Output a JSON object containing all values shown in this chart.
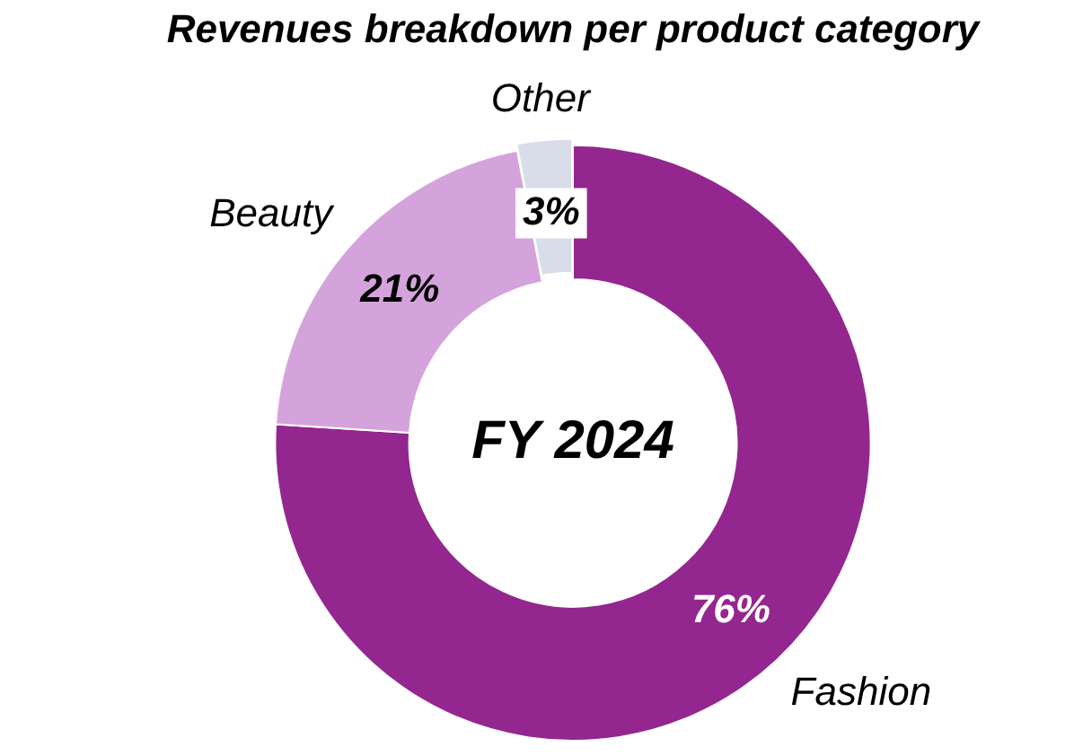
{
  "chart_data": {
    "type": "donut",
    "title": "Revenues breakdown per product category",
    "categories": [
      "Fashion",
      "Beauty",
      "Other"
    ],
    "values": [
      76,
      21,
      3
    ],
    "colors": [
      "#93278f",
      "#d5a3dc",
      "#d9dde9"
    ],
    "value_labels": [
      "76%",
      "21%",
      "3%"
    ],
    "annotations": [
      "FY 2024"
    ],
    "legend": false
  }
}
